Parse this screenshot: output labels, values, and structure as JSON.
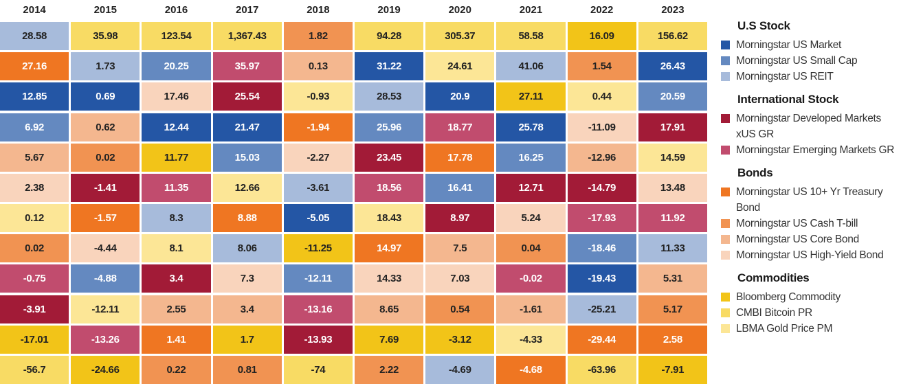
{
  "chart_data": {
    "type": "heatmap",
    "title": "",
    "years": [
      "2014",
      "2015",
      "2016",
      "2017",
      "2018",
      "2019",
      "2020",
      "2021",
      "2022",
      "2023"
    ],
    "assets": {
      "M": {
        "name": "Morningstar US Market",
        "color": "#2456a5",
        "text": "#ffffff"
      },
      "S": {
        "name": "Morningstar US Small Cap",
        "color": "#6489c0",
        "text": "#ffffff"
      },
      "R": {
        "name": "Morningstar US REIT",
        "color": "#a7bbdb",
        "text": "#222222"
      },
      "D": {
        "name": "Morningstar Developed Markets xUS GR",
        "color": "#a21b37",
        "text": "#ffffff"
      },
      "E": {
        "name": "Morningstar Emerging Markets GR",
        "color": "#c14c6e",
        "text": "#ffffff"
      },
      "T": {
        "name": "Morningstar US 10+ Yr Treasury Bond",
        "color": "#ef7622",
        "text": "#ffffff"
      },
      "C": {
        "name": "Morningstar US Cash T-bill",
        "color": "#f19352",
        "text": "#222222"
      },
      "B": {
        "name": "Morningstar US Core Bond",
        "color": "#f4b78f",
        "text": "#222222"
      },
      "H": {
        "name": "Morningstar US High-Yield Bond",
        "color": "#f9d4bc",
        "text": "#222222"
      },
      "K": {
        "name": "Bloomberg Commodity",
        "color": "#f2c418",
        "text": "#222222"
      },
      "X": {
        "name": "CMBI Bitcoin PR",
        "color": "#f8db64",
        "text": "#222222"
      },
      "G": {
        "name": "LBMA Gold Price PM",
        "color": "#fce696",
        "text": "#222222"
      }
    },
    "columns": [
      {
        "cells": [
          [
            "28.58",
            "R"
          ],
          [
            "27.16",
            "T"
          ],
          [
            "12.85",
            "M"
          ],
          [
            "6.92",
            "S"
          ],
          [
            "5.67",
            "B"
          ],
          [
            "2.38",
            "H"
          ],
          [
            "0.12",
            "G"
          ],
          [
            "0.02",
            "C"
          ],
          [
            "-0.75",
            "E"
          ],
          [
            "-3.91",
            "D"
          ],
          [
            "-17.01",
            "K"
          ],
          [
            "-56.7",
            "X"
          ]
        ]
      },
      {
        "cells": [
          [
            "35.98",
            "X"
          ],
          [
            "1.73",
            "R"
          ],
          [
            "0.69",
            "M"
          ],
          [
            "0.62",
            "B"
          ],
          [
            "0.02",
            "C"
          ],
          [
            "-1.41",
            "D"
          ],
          [
            "-1.57",
            "T"
          ],
          [
            "-4.44",
            "H"
          ],
          [
            "-4.88",
            "S"
          ],
          [
            "-12.11",
            "G"
          ],
          [
            "-13.26",
            "E"
          ],
          [
            "-24.66",
            "K"
          ]
        ]
      },
      {
        "cells": [
          [
            "123.54",
            "X"
          ],
          [
            "20.25",
            "S"
          ],
          [
            "17.46",
            "H"
          ],
          [
            "12.44",
            "M"
          ],
          [
            "11.77",
            "K"
          ],
          [
            "11.35",
            "E"
          ],
          [
            "8.3",
            "R"
          ],
          [
            "8.1",
            "G"
          ],
          [
            "3.4",
            "D"
          ],
          [
            "2.55",
            "B"
          ],
          [
            "1.41",
            "T"
          ],
          [
            "0.22",
            "C"
          ]
        ]
      },
      {
        "cells": [
          [
            "1,367.43",
            "X"
          ],
          [
            "35.97",
            "E"
          ],
          [
            "25.54",
            "D"
          ],
          [
            "21.47",
            "M"
          ],
          [
            "15.03",
            "S"
          ],
          [
            "12.66",
            "G"
          ],
          [
            "8.88",
            "T"
          ],
          [
            "8.06",
            "R"
          ],
          [
            "7.3",
            "H"
          ],
          [
            "3.4",
            "B"
          ],
          [
            "1.7",
            "K"
          ],
          [
            "0.81",
            "C"
          ]
        ]
      },
      {
        "cells": [
          [
            "1.82",
            "C"
          ],
          [
            "0.13",
            "B"
          ],
          [
            "-0.93",
            "G"
          ],
          [
            "-1.94",
            "T"
          ],
          [
            "-2.27",
            "H"
          ],
          [
            "-3.61",
            "R"
          ],
          [
            "-5.05",
            "M"
          ],
          [
            "-11.25",
            "K"
          ],
          [
            "-12.11",
            "S"
          ],
          [
            "-13.16",
            "E"
          ],
          [
            "-13.93",
            "D"
          ],
          [
            "-74",
            "X"
          ]
        ]
      },
      {
        "cells": [
          [
            "94.28",
            "X"
          ],
          [
            "31.22",
            "M"
          ],
          [
            "28.53",
            "R"
          ],
          [
            "25.96",
            "S"
          ],
          [
            "23.45",
            "D"
          ],
          [
            "18.56",
            "E"
          ],
          [
            "18.43",
            "G"
          ],
          [
            "14.97",
            "T"
          ],
          [
            "14.33",
            "H"
          ],
          [
            "8.65",
            "B"
          ],
          [
            "7.69",
            "K"
          ],
          [
            "2.22",
            "C"
          ]
        ]
      },
      {
        "cells": [
          [
            "305.37",
            "X"
          ],
          [
            "24.61",
            "G"
          ],
          [
            "20.9",
            "M"
          ],
          [
            "18.77",
            "E"
          ],
          [
            "17.78",
            "T"
          ],
          [
            "16.41",
            "S"
          ],
          [
            "8.97",
            "D"
          ],
          [
            "7.5",
            "B"
          ],
          [
            "7.03",
            "H"
          ],
          [
            "0.54",
            "C"
          ],
          [
            "-3.12",
            "K"
          ],
          [
            "-4.69",
            "R"
          ]
        ]
      },
      {
        "cells": [
          [
            "58.58",
            "X"
          ],
          [
            "41.06",
            "R"
          ],
          [
            "27.11",
            "K"
          ],
          [
            "25.78",
            "M"
          ],
          [
            "16.25",
            "S"
          ],
          [
            "12.71",
            "D"
          ],
          [
            "5.24",
            "H"
          ],
          [
            "0.04",
            "C"
          ],
          [
            "-0.02",
            "E"
          ],
          [
            "-1.61",
            "B"
          ],
          [
            "-4.33",
            "G"
          ],
          [
            "-4.68",
            "T"
          ]
        ]
      },
      {
        "cells": [
          [
            "16.09",
            "K"
          ],
          [
            "1.54",
            "C"
          ],
          [
            "0.44",
            "G"
          ],
          [
            "-11.09",
            "H"
          ],
          [
            "-12.96",
            "B"
          ],
          [
            "-14.79",
            "D"
          ],
          [
            "-17.93",
            "E"
          ],
          [
            "-18.46",
            "S"
          ],
          [
            "-19.43",
            "M"
          ],
          [
            "-25.21",
            "R"
          ],
          [
            "-29.44",
            "T"
          ],
          [
            "-63.96",
            "X"
          ]
        ]
      },
      {
        "cells": [
          [
            "156.62",
            "X"
          ],
          [
            "26.43",
            "M"
          ],
          [
            "20.59",
            "S"
          ],
          [
            "17.91",
            "D"
          ],
          [
            "14.59",
            "G"
          ],
          [
            "13.48",
            "H"
          ],
          [
            "11.92",
            "E"
          ],
          [
            "11.33",
            "R"
          ],
          [
            "5.31",
            "B"
          ],
          [
            "5.17",
            "C"
          ],
          [
            "2.58",
            "T"
          ],
          [
            "-7.91",
            "K"
          ]
        ]
      }
    ],
    "legend": [
      {
        "title": "U.S Stock",
        "items": [
          {
            "key": "M",
            "label": "Morningstar US Market"
          },
          {
            "key": "S",
            "label": "Morningstar US Small Cap"
          },
          {
            "key": "R",
            "label": "Morningstar US REIT"
          }
        ]
      },
      {
        "title": "International Stock",
        "items": [
          {
            "key": "D",
            "label": "Morningstar Developed Markets xUS GR"
          },
          {
            "key": "E",
            "label": "Morningstar Emerging Markets GR"
          }
        ]
      },
      {
        "title": "Bonds",
        "items": [
          {
            "key": "T",
            "label": "Morningstar US 10+ Yr Treasury Bond"
          },
          {
            "key": "C",
            "label": "Morningstar US Cash T-bill"
          },
          {
            "key": "B",
            "label": "Morningstar US Core Bond"
          },
          {
            "key": "H",
            "label": "Morningstar US High-Yield Bond"
          }
        ]
      },
      {
        "title": "Commodities",
        "items": [
          {
            "key": "K",
            "label": "Bloomberg Commodity"
          },
          {
            "key": "X",
            "label": "CMBI Bitcoin PR"
          },
          {
            "key": "G",
            "label": "LBMA Gold Price PM"
          }
        ]
      }
    ],
    "legend_placement": "right"
  }
}
